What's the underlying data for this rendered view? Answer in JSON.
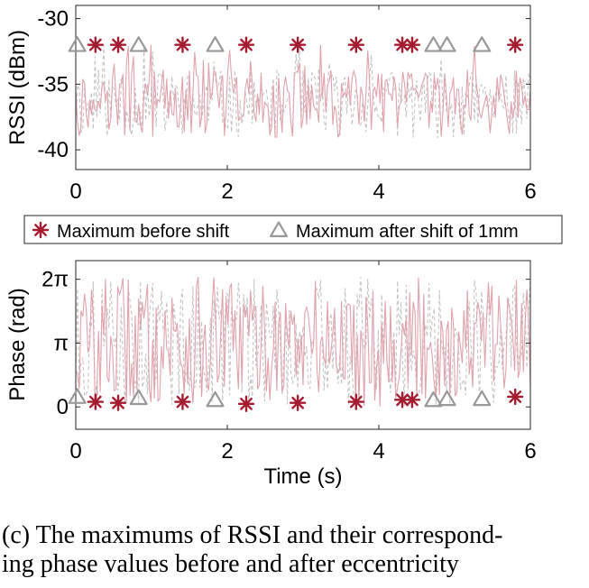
{
  "caption": {
    "line1": "(c) The maximums of RSSI and their correspond-",
    "line2": "ing phase values before and after eccentricity"
  },
  "colors": {
    "before": "#a51c30",
    "after": "#999999",
    "before_line": "#e0a3ad",
    "after_line": "#c4c4c4"
  },
  "legend": {
    "before_label": "Maximum before shift",
    "after_label": "Maximum after shift of 1mm"
  },
  "chart_data": [
    {
      "type": "line",
      "ylabel": "RSSI (dBm)",
      "xlabel": "",
      "xlim": [
        0,
        6
      ],
      "ylim": [
        -41.5,
        -29
      ],
      "x_ticks": [
        0,
        2,
        4,
        6
      ],
      "x_tick_labels": [
        "0",
        "2",
        "4",
        "6"
      ],
      "y_ticks": [
        -30,
        -35,
        -40
      ],
      "y_tick_labels": [
        "-30",
        "-35",
        "-40"
      ],
      "grid": false,
      "series": [
        {
          "name": "Maximum before shift",
          "marker": "asterisk",
          "x": [
            0.26,
            0.56,
            1.41,
            2.25,
            2.93,
            3.7,
            4.31,
            4.44,
            5.8
          ],
          "y": [
            -32,
            -32,
            -32,
            -32,
            -32,
            -32,
            -32,
            -32,
            -32
          ]
        },
        {
          "name": "Maximum after shift of 1mm",
          "marker": "triangle",
          "x": [
            0.02,
            0.83,
            1.84,
            4.72,
            4.9,
            5.36
          ],
          "y": [
            -32,
            -32,
            -32,
            -32,
            -32,
            -32
          ]
        }
      ]
    },
    {
      "type": "line",
      "ylabel": "Phase (rad)",
      "xlabel": "Time (s)",
      "xlim": [
        0,
        6
      ],
      "ylim": [
        -1.1,
        7.2
      ],
      "x_ticks": [
        0,
        2,
        4,
        6
      ],
      "x_tick_labels": [
        "0",
        "2",
        "4",
        "6"
      ],
      "y_ticks": [
        6.283,
        3.1416,
        0
      ],
      "y_tick_labels": [
        "2π",
        "π",
        "0"
      ],
      "grid": false,
      "series": [
        {
          "name": "Maximum before shift",
          "marker": "asterisk",
          "x": [
            0.26,
            0.56,
            1.41,
            2.25,
            2.93,
            3.7,
            4.31,
            4.44,
            5.8
          ],
          "y": [
            0.25,
            0.2,
            0.25,
            0.15,
            0.2,
            0.25,
            0.35,
            0.35,
            0.5
          ]
        },
        {
          "name": "Maximum after shift of 1mm",
          "marker": "triangle",
          "x": [
            0.02,
            0.83,
            1.84,
            4.72,
            4.9,
            5.36
          ],
          "y": [
            0.5,
            0.45,
            0.35,
            0.35,
            0.4,
            0.4
          ]
        }
      ]
    }
  ]
}
